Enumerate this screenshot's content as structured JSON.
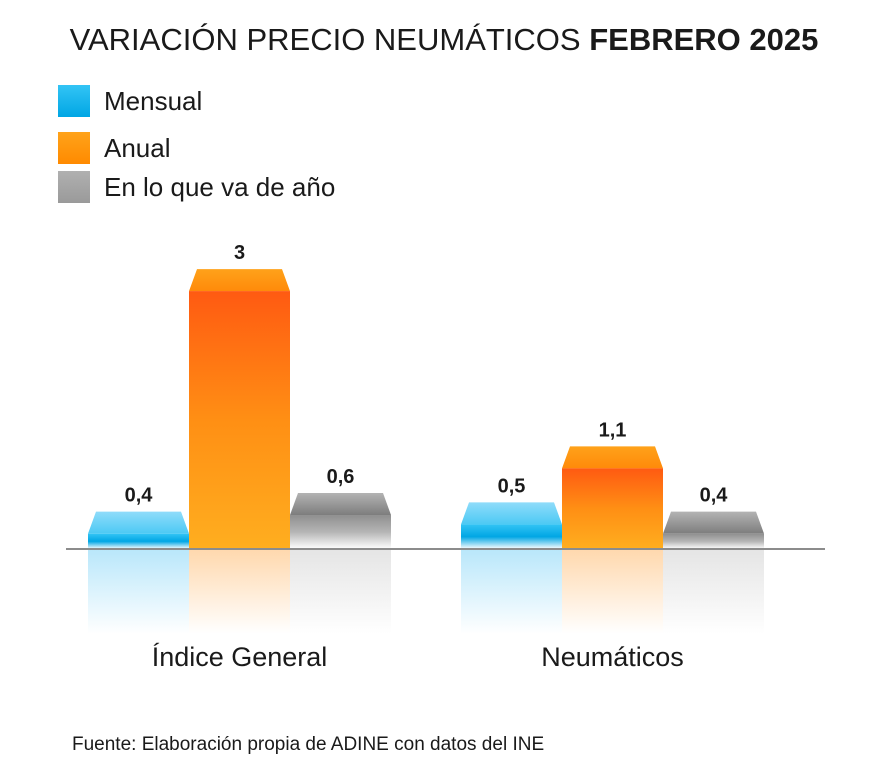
{
  "title": {
    "main": "VARIACIÓN PRECIO NEUMÁTICOS",
    "bold": "FEBRERO 2025"
  },
  "source": "Fuente: Elaboración propia de ADINE con datos del INE",
  "chart_data": {
    "type": "bar",
    "categories": [
      "Índice General",
      "Neumáticos"
    ],
    "series": [
      {
        "name": "Mensual",
        "color": "#00b0f0",
        "values": [
          0.4,
          0.5
        ],
        "labels": [
          "0,4",
          "0,5"
        ]
      },
      {
        "name": "Anual",
        "color": "#ff9800",
        "values": [
          3,
          1.1
        ],
        "labels": [
          "3",
          "1,1"
        ]
      },
      {
        "name": "En lo que va de año",
        "color": "#a6a6a6",
        "values": [
          0.6,
          0.4
        ],
        "labels": [
          "0,6",
          "0,4"
        ]
      }
    ],
    "xlabel": "",
    "ylabel": "",
    "grid": false,
    "legend": "top-left"
  }
}
